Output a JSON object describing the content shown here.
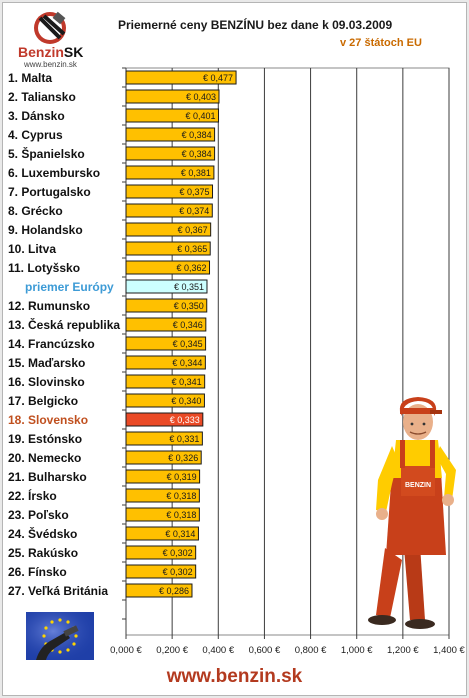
{
  "header": {
    "logo_brand": "Benzin",
    "logo_suffix": "SK",
    "logo_url": "www.benzin.sk",
    "title": "Priemerné ceny BENZÍNU bez dane k 09.03.2009",
    "subtitle": "v 27 štátoch EU"
  },
  "footer": {
    "url": "www.benzin.sk"
  },
  "colors": {
    "bar": "#ffc000",
    "average_bar": "#ccffff",
    "highlight_bar": "#ea4a26",
    "highlight_label": "#c0501f",
    "average_label": "#3d9bd6"
  },
  "icons": [
    "eu-flag-fuel-nozzle-icon",
    "gas-station-attendant-illustration"
  ],
  "chart_data": {
    "type": "bar",
    "orientation": "horizontal",
    "title": "Priemerné ceny BENZÍNU bez dane k 09.03.2009",
    "subtitle": "v 27 štátoch EU",
    "categories": [
      "1. Malta",
      "2. Taliansko",
      "3. Dánsko",
      "4. Cyprus",
      "5. Španielsko",
      "6. Luxembursko",
      "7. Portugalsko",
      "8. Grécko",
      "9. Holandsko",
      "10. Litva",
      "11. Lotyšsko",
      "priemer Európy",
      "12. Rumunsko",
      "13. Česká republika",
      "14. Francúzsko",
      "15. Maďarsko",
      "16. Slovinsko",
      "17. Belgicko",
      "18. Slovensko",
      "19. Estónsko",
      "20. Nemecko",
      "21. Bulharsko",
      "22. Írsko",
      "23. Poľsko",
      "24. Švédsko",
      "25. Rakúsko",
      "26. Fínsko",
      "27. Veľká Británia"
    ],
    "values": [
      0.477,
      0.403,
      0.401,
      0.384,
      0.384,
      0.381,
      0.375,
      0.374,
      0.367,
      0.365,
      0.362,
      0.351,
      0.35,
      0.346,
      0.345,
      0.344,
      0.341,
      0.34,
      0.333,
      0.331,
      0.326,
      0.319,
      0.318,
      0.318,
      0.314,
      0.302,
      0.302,
      0.286
    ],
    "data_labels": [
      "€ 0,477",
      "€ 0,403",
      "€ 0,401",
      "€ 0,384",
      "€ 0,384",
      "€ 0,381",
      "€ 0,375",
      "€ 0,374",
      "€ 0,367",
      "€ 0,365",
      "€ 0,362",
      "€ 0,351",
      "€ 0,350",
      "€ 0,346",
      "€ 0,345",
      "€ 0,344",
      "€ 0,341",
      "€ 0,340",
      "€ 0,333",
      "€ 0,331",
      "€ 0,326",
      "€ 0,319",
      "€ 0,318",
      "€ 0,318",
      "€ 0,314",
      "€ 0,302",
      "€ 0,302",
      "€ 0,286"
    ],
    "average_index": 11,
    "highlight_index": 18,
    "xlim": [
      0,
      1.4
    ],
    "x_ticks": [
      0,
      0.2,
      0.4,
      0.6,
      0.8,
      1.0,
      1.2,
      1.4
    ],
    "x_tick_labels": [
      "0,000 €",
      "0,200 €",
      "0,400 €",
      "0,600 €",
      "0,800 €",
      "1,000 €",
      "1,200 €",
      "1,400 €"
    ],
    "grid": "vertical",
    "legend": "none"
  }
}
